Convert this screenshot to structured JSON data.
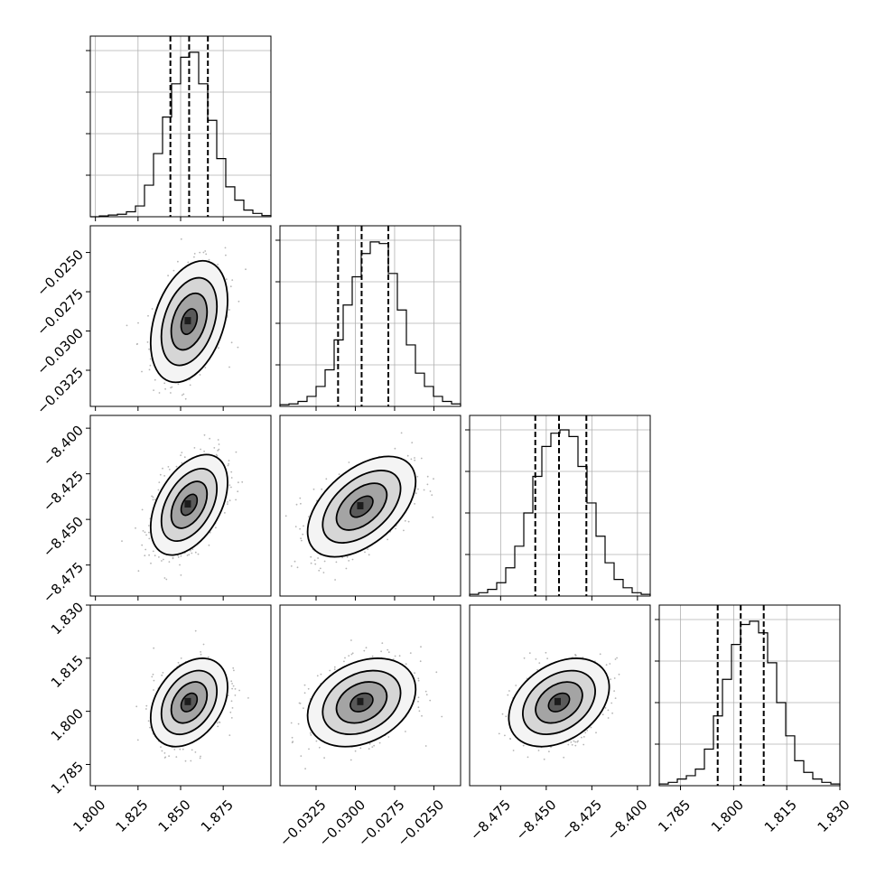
{
  "chart_data": {
    "type": "corner",
    "grid": true,
    "params": [
      {
        "range": [
          1.797,
          1.903
        ],
        "ticks": [
          "1.800",
          "1.825",
          "1.850",
          "1.875"
        ],
        "hist_peak": 1.0,
        "quantiles": [
          1.844,
          1.855,
          1.866
        ],
        "hist": [
          0,
          0.005,
          0.01,
          0.015,
          0.03,
          0.065,
          0.19,
          0.38,
          0.6,
          0.8,
          0.96,
          0.99,
          0.8,
          0.58,
          0.35,
          0.18,
          0.1,
          0.04,
          0.02,
          0.007
        ]
      },
      {
        "range": [
          -0.0348,
          -0.0233
        ],
        "ticks": [
          "−0.0325",
          "−0.0300",
          "−0.0275",
          "−0.0250"
        ],
        "hist_peak": 1.0,
        "quantiles": [
          -0.0311,
          -0.0296,
          -0.0279
        ],
        "hist": [
          0.01,
          0.015,
          0.03,
          0.06,
          0.12,
          0.22,
          0.4,
          0.61,
          0.78,
          0.92,
          0.99,
          0.98,
          0.8,
          0.58,
          0.37,
          0.2,
          0.12,
          0.06,
          0.03,
          0.015
        ]
      },
      {
        "range": [
          -8.492,
          -8.393
        ],
        "ticks": [
          "−8.475",
          "−8.450",
          "−8.425",
          "−8.400"
        ],
        "hist_peak": 1.0,
        "quantiles": [
          -8.456,
          -8.443,
          -8.428
        ],
        "hist": [
          0.01,
          0.02,
          0.04,
          0.08,
          0.17,
          0.3,
          0.5,
          0.72,
          0.9,
          0.98,
          1.0,
          0.96,
          0.78,
          0.56,
          0.36,
          0.2,
          0.1,
          0.05,
          0.02,
          0.01
        ]
      },
      {
        "range": [
          1.779,
          1.83
        ],
        "ticks": [
          "1.785",
          "1.800",
          "1.815",
          "1.830"
        ],
        "hist_peak": 1.0,
        "quantiles": [
          1.7955,
          1.802,
          1.8085
        ],
        "hist": [
          0.01,
          0.02,
          0.04,
          0.06,
          0.1,
          0.22,
          0.42,
          0.64,
          0.85,
          0.97,
          0.99,
          0.92,
          0.74,
          0.5,
          0.3,
          0.15,
          0.08,
          0.04,
          0.02,
          0.01
        ]
      }
    ],
    "yticks_rows": [
      [
        "−0.0250",
        "−0.0275",
        "−0.0300",
        "−0.0325"
      ],
      [
        "−8.400",
        "−8.425",
        "−8.450",
        "−8.475"
      ],
      [
        "1.830",
        "1.815",
        "1.800",
        "1.785"
      ]
    ],
    "pairs": [
      {
        "row": 1,
        "col": 0,
        "center": [
          1.855,
          -0.0294
        ],
        "sd": [
          0.0105,
          0.0018
        ],
        "rho": 0.35
      },
      {
        "row": 2,
        "col": 0,
        "center": [
          1.855,
          -8.442
        ],
        "sd": [
          0.0105,
          0.0128
        ],
        "rho": 0.45
      },
      {
        "row": 2,
        "col": 1,
        "center": [
          -0.0296,
          -8.443
        ],
        "sd": [
          0.0016,
          0.0128
        ],
        "rho": 0.5
      },
      {
        "row": 3,
        "col": 0,
        "center": [
          1.855,
          1.8025
        ],
        "sd": [
          0.0105,
          0.0058
        ],
        "rho": 0.35
      },
      {
        "row": 3,
        "col": 1,
        "center": [
          -0.0296,
          1.8025
        ],
        "sd": [
          0.0016,
          0.0058
        ],
        "rho": 0.3
      },
      {
        "row": 3,
        "col": 2,
        "center": [
          -8.443,
          1.8025
        ],
        "sd": [
          0.0128,
          0.0058
        ],
        "rho": 0.35
      }
    ]
  }
}
